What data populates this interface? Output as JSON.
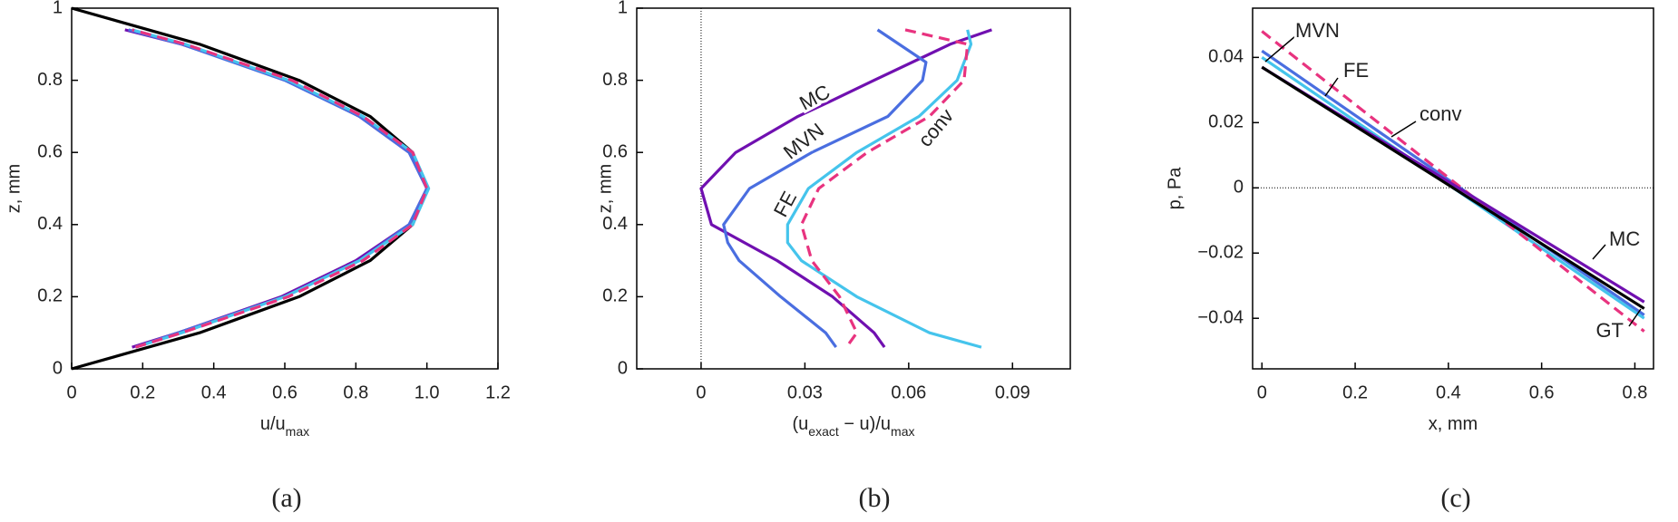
{
  "chart_data": [
    {
      "type": "line",
      "caption": "(a)",
      "ylabel": "z, mm",
      "xlabel": [
        {
          "text": "u/u"
        },
        {
          "text": "max",
          "sub": true
        }
      ],
      "xlim": [
        0,
        1.2
      ],
      "ylim": [
        0,
        1
      ],
      "xticks": [
        0,
        0.2,
        0.4,
        0.6,
        0.8,
        {
          "value": 1,
          "label": "1.0"
        },
        1.2
      ],
      "yticks": [
        0,
        0.2,
        0.4,
        0.6,
        0.8,
        1
      ],
      "series": [
        {
          "color": "#000000",
          "x": [
            0,
            0.36,
            0.64,
            0.84,
            0.96,
            1,
            0.96,
            0.84,
            0.64,
            0.36,
            0
          ],
          "values": [
            0,
            0.1,
            0.2,
            0.3,
            0.4,
            0.5,
            0.6,
            0.7,
            0.8,
            0.9,
            1
          ]
        },
        {
          "color": "#7010b0",
          "x": [
            0.17,
            0.3,
            0.59,
            0.8,
            0.95,
            1.0,
            0.95,
            0.81,
            0.61,
            0.31,
            0.15
          ],
          "values": [
            0.06,
            0.1,
            0.2,
            0.3,
            0.4,
            0.5,
            0.6,
            0.7,
            0.8,
            0.9,
            0.94
          ]
        },
        {
          "color": "#4a6ee0",
          "x": [
            0.18,
            0.3,
            0.6,
            0.81,
            0.95,
            1.0,
            0.95,
            0.81,
            0.6,
            0.31,
            0.16
          ],
          "values": [
            0.06,
            0.1,
            0.2,
            0.3,
            0.4,
            0.5,
            0.6,
            0.7,
            0.8,
            0.9,
            0.94
          ]
        },
        {
          "color": "#45c4ec",
          "x": [
            0.18,
            0.31,
            0.6,
            0.81,
            0.96,
            1.005,
            0.96,
            0.82,
            0.61,
            0.32,
            0.17
          ],
          "values": [
            0.06,
            0.1,
            0.2,
            0.3,
            0.4,
            0.5,
            0.6,
            0.7,
            0.8,
            0.9,
            0.94
          ]
        },
        {
          "color": "#e8337f",
          "dashed": true,
          "x": [
            0.18,
            0.31,
            0.61,
            0.82,
            0.96,
            1.0,
            0.96,
            0.82,
            0.62,
            0.32,
            0.17
          ],
          "values": [
            0.06,
            0.1,
            0.2,
            0.3,
            0.4,
            0.5,
            0.6,
            0.7,
            0.8,
            0.9,
            0.94
          ]
        }
      ]
    },
    {
      "type": "line",
      "caption": "(b)",
      "ylabel": "z, mm",
      "xlabel": [
        {
          "text": "(u"
        },
        {
          "text": "exact",
          "sub": true
        },
        {
          "text": " − u)/u"
        },
        {
          "text": "max",
          "sub": true
        }
      ],
      "xlim": [
        -0.0186,
        0.1067
      ],
      "ylim": [
        0,
        1
      ],
      "zero_line": "x",
      "xticks": [
        0,
        0.03,
        0.06,
        0.09
      ],
      "yticks": [
        0,
        0.2,
        0.4,
        0.6,
        0.8,
        1
      ],
      "series": [
        {
          "name": "MC",
          "color": "#7010b0",
          "x": [
            0.084,
            0.072,
            0.05,
            0.037,
            0.028,
            0.01,
            0,
            0.003,
            0.022,
            0.038,
            0.05,
            0.053
          ],
          "values": [
            0.94,
            0.9,
            0.8,
            0.74,
            0.7,
            0.6,
            0.5,
            0.4,
            0.3,
            0.2,
            0.1,
            0.06
          ]
        },
        {
          "name": "MVN",
          "color": "#4a6ee0",
          "x": [
            0.051,
            0.065,
            0.064,
            0.054,
            0.032,
            0.014,
            0.0065,
            0.0077,
            0.011,
            0.023,
            0.036,
            0.039
          ],
          "values": [
            0.94,
            0.85,
            0.8,
            0.7,
            0.6,
            0.5,
            0.4,
            0.35,
            0.3,
            0.2,
            0.1,
            0.06
          ]
        },
        {
          "name": "FE",
          "color": "#45c4ec",
          "x": [
            0.077,
            0.078,
            0.074,
            0.063,
            0.045,
            0.031,
            0.025,
            0.025,
            0.029,
            0.045,
            0.066,
            0.081
          ],
          "values": [
            0.94,
            0.9,
            0.8,
            0.7,
            0.6,
            0.5,
            0.4,
            0.35,
            0.3,
            0.2,
            0.1,
            0.06
          ]
        },
        {
          "name": "conv",
          "color": "#e8337f",
          "dashed": true,
          "x": [
            0.059,
            0.077,
            0.076,
            0.066,
            0.048,
            0.034,
            0.029,
            0.032,
            0.04,
            0.045,
            0.042
          ],
          "values": [
            0.94,
            0.9,
            0.8,
            0.7,
            0.6,
            0.5,
            0.4,
            0.3,
            0.2,
            0.1,
            0.06
          ]
        }
      ]
    },
    {
      "type": "line",
      "caption": "(c)",
      "ylabel": "p, Pa",
      "xlabel": [
        {
          "text": "x, mm"
        }
      ],
      "xlim": [
        -0.02,
        0.84
      ],
      "ylim": [
        -0.0555,
        0.0551
      ],
      "zero_line": "y",
      "xticks": [
        0,
        0.2,
        0.4,
        0.6,
        0.8
      ],
      "yticks": [
        {
          "value": -0.04,
          "label": "−0.04"
        },
        {
          "value": -0.02,
          "label": "−0.02"
        },
        0,
        0.02,
        0.04
      ],
      "series": [
        {
          "name": "MVN",
          "color": "#4a6ee0",
          "x": [
            0,
            0.82
          ],
          "values": [
            0.042,
            -0.039
          ]
        },
        {
          "name": "FE",
          "color": "#45c4ec",
          "x": [
            0,
            0.82
          ],
          "values": [
            0.04,
            -0.04
          ]
        },
        {
          "name": "conv",
          "color": "#e8337f",
          "dashed": true,
          "x": [
            0,
            0.82
          ],
          "values": [
            0.048,
            -0.044
          ]
        },
        {
          "name": "MC",
          "color": "#7010b0",
          "x": [
            0,
            0.82
          ],
          "values": [
            0.037,
            -0.035
          ]
        },
        {
          "name": "GT",
          "color": "#000000",
          "x": [
            0,
            0.82
          ],
          "values": [
            0.037,
            -0.037
          ]
        }
      ]
    }
  ]
}
